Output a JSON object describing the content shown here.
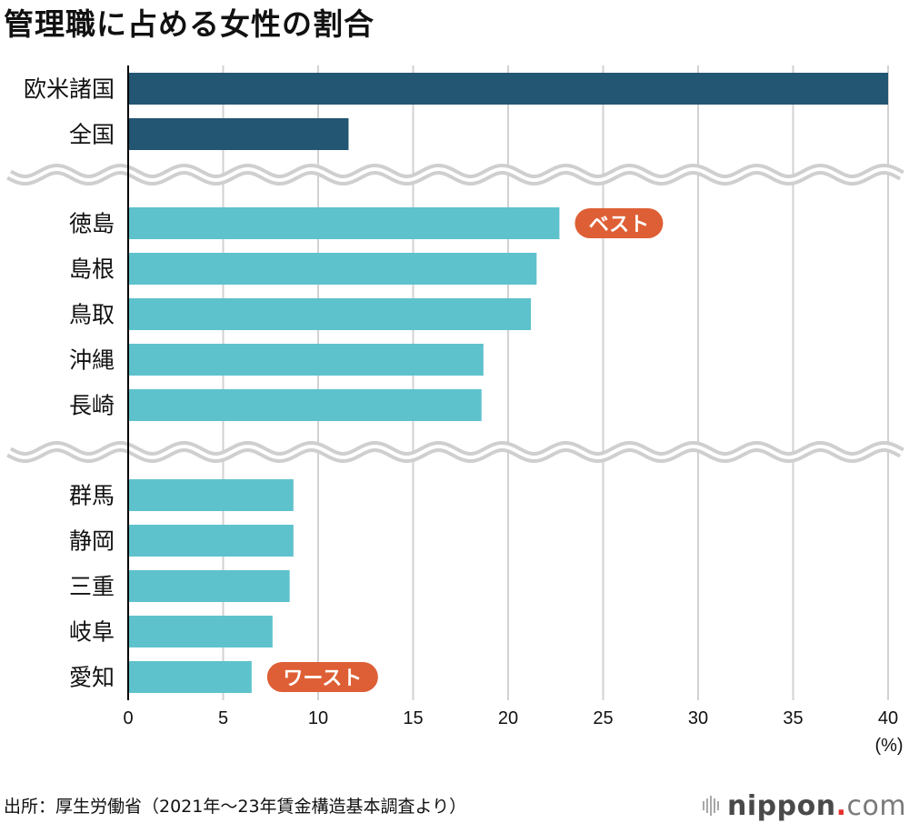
{
  "title": "管理職に占める女性の割合",
  "source": "出所：厚生労働省（2021年〜23年賃金構造基本調査より）",
  "logo": {
    "brand": "nippon",
    "dot": ".",
    "tld": "com"
  },
  "colors": {
    "dark_bar": "#235673",
    "light_bar": "#5ec2cc",
    "badge": "#de5f35",
    "grid": "#d2d2d2",
    "axis": "#000000",
    "break_line": "#cfcfcf"
  },
  "chart_data": {
    "type": "bar",
    "orientation": "horizontal",
    "title": "管理職に占める女性の割合",
    "xlabel": "(%)",
    "ylabel": "",
    "xlim": [
      0,
      40
    ],
    "xticks": [
      0,
      5,
      10,
      15,
      20,
      25,
      30,
      35,
      40
    ],
    "grid": true,
    "groups": [
      {
        "name": "comparison",
        "color_key": "dark_bar",
        "categories": [
          "欧米諸国",
          "全国"
        ],
        "values": [
          40.0,
          11.6
        ]
      },
      {
        "name": "top5",
        "color_key": "light_bar",
        "categories": [
          "徳島",
          "島根",
          "鳥取",
          "沖縄",
          "長崎"
        ],
        "values": [
          22.7,
          21.5,
          21.2,
          18.7,
          18.6
        ]
      },
      {
        "name": "bottom5",
        "color_key": "light_bar",
        "categories": [
          "群馬",
          "静岡",
          "三重",
          "岐阜",
          "愛知"
        ],
        "values": [
          8.7,
          8.7,
          8.5,
          7.6,
          6.5
        ]
      }
    ],
    "annotations": [
      {
        "text": "ベスト",
        "category": "徳島"
      },
      {
        "text": "ワースト",
        "category": "愛知"
      }
    ],
    "axis_breaks": [
      "between comparison and top5",
      "between top5 and bottom5"
    ],
    "unit_label": "(%)"
  }
}
